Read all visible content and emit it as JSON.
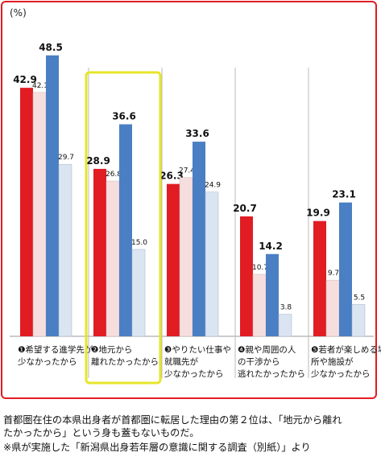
{
  "chart_data": {
    "type": "bar",
    "unit_label": "(%)",
    "categories": [
      {
        "marker": "❶",
        "lines": [
          "希望する進学先が",
          "少なかったから"
        ]
      },
      {
        "marker": "❷",
        "lines": [
          "地元から",
          "離れたかったから"
        ]
      },
      {
        "marker": "❸",
        "lines": [
          "やりたい仕事や",
          "就職先が",
          "少なかったから"
        ]
      },
      {
        "marker": "❹",
        "lines": [
          "親や周囲の人",
          "の干渉から",
          "逃れたかったから"
        ]
      },
      {
        "marker": "❺",
        "lines": [
          "若者が楽しめる場",
          "所や施設が",
          "少なかったから"
        ]
      }
    ],
    "series": [
      {
        "values": [
          42.9,
          28.9,
          26.3,
          20.7,
          19.9
        ],
        "color": "#e11c23",
        "label_style": "bold"
      },
      {
        "values": [
          42.1,
          26.8,
          27.4,
          10.7,
          9.7
        ],
        "color": "#f7dede",
        "label_style": "small"
      },
      {
        "values": [
          48.5,
          36.6,
          33.6,
          14.2,
          23.1
        ],
        "color": "#4a7fc3",
        "label_style": "bold"
      },
      {
        "values": [
          29.7,
          15.0,
          24.9,
          3.8,
          5.5
        ],
        "color": "#dbe5f1",
        "label_style": "small"
      }
    ],
    "value_labels": [
      [
        "42.9",
        "28.9",
        "26.3",
        "20.7",
        "19.9"
      ],
      [
        "42.1",
        "26.8",
        "27.4",
        "10.7",
        "9.7"
      ],
      [
        "48.5",
        "36.6",
        "33.6",
        "14.2",
        "23.1"
      ],
      [
        "29.7",
        "15.0",
        "24.9",
        "3.8",
        "5.5"
      ]
    ],
    "ylim": [
      0,
      55
    ],
    "highlight_category_index": 1,
    "highlight_color": "#e6e62a",
    "frame_color": "#e11c23"
  },
  "caption": {
    "line1": "首都圏在住の本県出身者が首都圏に転居した理由の第２位は、「地元から離れ",
    "line2": "たかったから」という身も蓋もないものだ。",
    "line3": "※県が実施した「新潟県出身若年層の意識に関する調査（別紙）」より"
  }
}
